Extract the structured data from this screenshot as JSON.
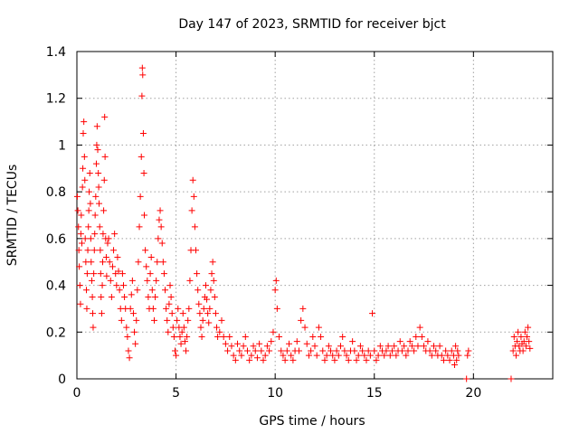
{
  "chart_data": {
    "type": "scatter",
    "title": "Day 147 of 2023, SRMTID for receiver bjct",
    "xlabel": "GPS time / hours",
    "ylabel": "SRMTID / TECUs",
    "xlim": [
      0,
      24
    ],
    "ylim": [
      0,
      1.4
    ],
    "xticks": [
      0,
      5,
      10,
      15,
      20
    ],
    "yticks": [
      0,
      0.2,
      0.4,
      0.6,
      0.8,
      1,
      1.2,
      1.4
    ],
    "xtick_labels": [
      "0",
      "5",
      "10",
      "15",
      "20"
    ],
    "ytick_labels": [
      "0",
      "0.2",
      "0.4",
      "0.6",
      "0.8",
      "1",
      "1.2",
      "1.4"
    ],
    "grid": true,
    "legend": "none",
    "marker": "plus",
    "series_color": "#ff0000",
    "series": [
      {
        "name": "SRMTID",
        "points": [
          [
            0.02,
            0.78
          ],
          [
            0.05,
            0.72
          ],
          [
            0.08,
            0.65
          ],
          [
            0.1,
            0.55
          ],
          [
            0.12,
            0.48
          ],
          [
            0.15,
            0.4
          ],
          [
            0.18,
            0.32
          ],
          [
            0.2,
            0.62
          ],
          [
            0.22,
            0.7
          ],
          [
            0.25,
            0.58
          ],
          [
            0.28,
            0.82
          ],
          [
            0.3,
            0.9
          ],
          [
            0.32,
            1.05
          ],
          [
            0.35,
            1.1
          ],
          [
            0.38,
            0.95
          ],
          [
            0.4,
            0.85
          ],
          [
            0.42,
            0.6
          ],
          [
            0.45,
            0.5
          ],
          [
            0.48,
            0.38
          ],
          [
            0.5,
            0.3
          ],
          [
            0.52,
            0.45
          ],
          [
            0.55,
            0.55
          ],
          [
            0.58,
            0.65
          ],
          [
            0.6,
            0.72
          ],
          [
            0.62,
            0.8
          ],
          [
            0.65,
            0.88
          ],
          [
            0.68,
            0.75
          ],
          [
            0.7,
            0.6
          ],
          [
            0.72,
            0.5
          ],
          [
            0.75,
            0.42
          ],
          [
            0.78,
            0.35
          ],
          [
            0.8,
            0.28
          ],
          [
            0.82,
            0.22
          ],
          [
            0.85,
            0.45
          ],
          [
            0.88,
            0.55
          ],
          [
            0.9,
            0.62
          ],
          [
            0.92,
            0.7
          ],
          [
            0.95,
            0.78
          ],
          [
            0.98,
            0.92
          ],
          [
            1.0,
            1.0
          ],
          [
            1.02,
            1.08
          ],
          [
            1.05,
            0.98
          ],
          [
            1.08,
            0.88
          ],
          [
            1.1,
            0.82
          ],
          [
            1.12,
            0.75
          ],
          [
            1.15,
            0.65
          ],
          [
            1.18,
            0.55
          ],
          [
            1.2,
            0.45
          ],
          [
            1.22,
            0.35
          ],
          [
            1.25,
            0.28
          ],
          [
            1.28,
            0.4
          ],
          [
            1.3,
            0.5
          ],
          [
            1.32,
            0.62
          ],
          [
            1.35,
            0.72
          ],
          [
            1.38,
            0.85
          ],
          [
            1.4,
            1.12
          ],
          [
            1.42,
            0.95
          ],
          [
            1.45,
            0.6
          ],
          [
            1.48,
            0.52
          ],
          [
            1.5,
            0.44
          ],
          [
            1.55,
            0.58
          ],
          [
            1.6,
            0.6
          ],
          [
            1.65,
            0.5
          ],
          [
            1.7,
            0.42
          ],
          [
            1.75,
            0.35
          ],
          [
            1.8,
            0.48
          ],
          [
            1.85,
            0.55
          ],
          [
            1.9,
            0.62
          ],
          [
            1.95,
            0.45
          ],
          [
            2.0,
            0.4
          ],
          [
            2.05,
            0.52
          ],
          [
            2.1,
            0.46
          ],
          [
            2.15,
            0.38
          ],
          [
            2.2,
            0.3
          ],
          [
            2.25,
            0.25
          ],
          [
            2.3,
            0.45
          ],
          [
            2.35,
            0.4
          ],
          [
            2.4,
            0.35
          ],
          [
            2.45,
            0.3
          ],
          [
            2.5,
            0.22
          ],
          [
            2.55,
            0.18
          ],
          [
            2.6,
            0.12
          ],
          [
            2.65,
            0.09
          ],
          [
            2.7,
            0.3
          ],
          [
            2.75,
            0.36
          ],
          [
            2.8,
            0.42
          ],
          [
            2.85,
            0.28
          ],
          [
            2.9,
            0.2
          ],
          [
            2.95,
            0.15
          ],
          [
            3.0,
            0.25
          ],
          [
            3.05,
            0.38
          ],
          [
            3.1,
            0.5
          ],
          [
            3.15,
            0.65
          ],
          [
            3.2,
            0.78
          ],
          [
            3.25,
            0.95
          ],
          [
            3.28,
            1.21
          ],
          [
            3.3,
            1.33
          ],
          [
            3.32,
            1.3
          ],
          [
            3.35,
            1.05
          ],
          [
            3.38,
            0.88
          ],
          [
            3.4,
            0.7
          ],
          [
            3.45,
            0.55
          ],
          [
            3.5,
            0.48
          ],
          [
            3.55,
            0.42
          ],
          [
            3.6,
            0.35
          ],
          [
            3.65,
            0.3
          ],
          [
            3.7,
            0.45
          ],
          [
            3.75,
            0.52
          ],
          [
            3.8,
            0.38
          ],
          [
            3.85,
            0.3
          ],
          [
            3.9,
            0.25
          ],
          [
            3.95,
            0.35
          ],
          [
            4.0,
            0.42
          ],
          [
            4.05,
            0.5
          ],
          [
            4.1,
            0.6
          ],
          [
            4.15,
            0.68
          ],
          [
            4.2,
            0.72
          ],
          [
            4.25,
            0.65
          ],
          [
            4.3,
            0.58
          ],
          [
            4.35,
            0.5
          ],
          [
            4.4,
            0.45
          ],
          [
            4.45,
            0.38
          ],
          [
            4.5,
            0.3
          ],
          [
            4.55,
            0.25
          ],
          [
            4.6,
            0.2
          ],
          [
            4.65,
            0.32
          ],
          [
            4.7,
            0.4
          ],
          [
            4.75,
            0.35
          ],
          [
            4.8,
            0.28
          ],
          [
            4.85,
            0.22
          ],
          [
            4.9,
            0.18
          ],
          [
            4.95,
            0.12
          ],
          [
            5.0,
            0.1
          ],
          [
            5.05,
            0.25
          ],
          [
            5.1,
            0.3
          ],
          [
            5.15,
            0.22
          ],
          [
            5.2,
            0.18
          ],
          [
            5.25,
            0.15
          ],
          [
            5.3,
            0.2
          ],
          [
            5.35,
            0.28
          ],
          [
            5.4,
            0.22
          ],
          [
            5.45,
            0.16
          ],
          [
            5.5,
            0.12
          ],
          [
            5.55,
            0.18
          ],
          [
            5.6,
            0.25
          ],
          [
            5.65,
            0.3
          ],
          [
            5.7,
            0.42
          ],
          [
            5.75,
            0.55
          ],
          [
            5.8,
            0.72
          ],
          [
            5.85,
            0.85
          ],
          [
            5.9,
            0.78
          ],
          [
            5.95,
            0.65
          ],
          [
            6.0,
            0.55
          ],
          [
            6.05,
            0.45
          ],
          [
            6.1,
            0.38
          ],
          [
            6.15,
            0.32
          ],
          [
            6.2,
            0.28
          ],
          [
            6.25,
            0.22
          ],
          [
            6.3,
            0.18
          ],
          [
            6.35,
            0.25
          ],
          [
            6.4,
            0.3
          ],
          [
            6.45,
            0.35
          ],
          [
            6.5,
            0.4
          ],
          [
            6.55,
            0.34
          ],
          [
            6.6,
            0.28
          ],
          [
            6.65,
            0.24
          ],
          [
            6.7,
            0.3
          ],
          [
            6.75,
            0.38
          ],
          [
            6.8,
            0.45
          ],
          [
            6.85,
            0.5
          ],
          [
            6.9,
            0.42
          ],
          [
            6.95,
            0.35
          ],
          [
            7.0,
            0.28
          ],
          [
            7.05,
            0.22
          ],
          [
            7.1,
            0.18
          ],
          [
            7.2,
            0.2
          ],
          [
            7.3,
            0.25
          ],
          [
            7.4,
            0.18
          ],
          [
            7.5,
            0.15
          ],
          [
            7.6,
            0.12
          ],
          [
            7.7,
            0.18
          ],
          [
            7.8,
            0.14
          ],
          [
            7.9,
            0.1
          ],
          [
            8.0,
            0.08
          ],
          [
            8.1,
            0.15
          ],
          [
            8.2,
            0.12
          ],
          [
            8.3,
            0.1
          ],
          [
            8.4,
            0.14
          ],
          [
            8.5,
            0.18
          ],
          [
            8.6,
            0.12
          ],
          [
            8.7,
            0.08
          ],
          [
            8.8,
            0.1
          ],
          [
            8.9,
            0.14
          ],
          [
            9.0,
            0.12
          ],
          [
            9.1,
            0.09
          ],
          [
            9.2,
            0.15
          ],
          [
            9.3,
            0.12
          ],
          [
            9.4,
            0.08
          ],
          [
            9.5,
            0.1
          ],
          [
            9.6,
            0.14
          ],
          [
            9.7,
            0.12
          ],
          [
            9.8,
            0.16
          ],
          [
            9.9,
            0.2
          ],
          [
            10.0,
            0.38
          ],
          [
            10.05,
            0.42
          ],
          [
            10.1,
            0.3
          ],
          [
            10.2,
            0.18
          ],
          [
            10.3,
            0.12
          ],
          [
            10.4,
            0.1
          ],
          [
            10.5,
            0.08
          ],
          [
            10.6,
            0.12
          ],
          [
            10.7,
            0.15
          ],
          [
            10.8,
            0.1
          ],
          [
            10.9,
            0.08
          ],
          [
            11.0,
            0.12
          ],
          [
            11.1,
            0.16
          ],
          [
            11.2,
            0.12
          ],
          [
            11.3,
            0.25
          ],
          [
            11.4,
            0.3
          ],
          [
            11.5,
            0.22
          ],
          [
            11.6,
            0.15
          ],
          [
            11.7,
            0.1
          ],
          [
            11.8,
            0.12
          ],
          [
            11.9,
            0.18
          ],
          [
            12.0,
            0.14
          ],
          [
            12.1,
            0.1
          ],
          [
            12.2,
            0.22
          ],
          [
            12.3,
            0.18
          ],
          [
            12.4,
            0.12
          ],
          [
            12.5,
            0.08
          ],
          [
            12.6,
            0.1
          ],
          [
            12.7,
            0.14
          ],
          [
            12.8,
            0.12
          ],
          [
            12.9,
            0.1
          ],
          [
            13.0,
            0.08
          ],
          [
            13.1,
            0.12
          ],
          [
            13.2,
            0.1
          ],
          [
            13.3,
            0.14
          ],
          [
            13.4,
            0.18
          ],
          [
            13.5,
            0.12
          ],
          [
            13.6,
            0.1
          ],
          [
            13.7,
            0.08
          ],
          [
            13.8,
            0.12
          ],
          [
            13.9,
            0.16
          ],
          [
            14.0,
            0.12
          ],
          [
            14.1,
            0.08
          ],
          [
            14.2,
            0.1
          ],
          [
            14.3,
            0.14
          ],
          [
            14.4,
            0.12
          ],
          [
            14.5,
            0.1
          ],
          [
            14.6,
            0.08
          ],
          [
            14.7,
            0.12
          ],
          [
            14.8,
            0.1
          ],
          [
            14.9,
            0.28
          ],
          [
            15.0,
            0.12
          ],
          [
            15.1,
            0.08
          ],
          [
            15.2,
            0.1
          ],
          [
            15.3,
            0.14
          ],
          [
            15.4,
            0.12
          ],
          [
            15.5,
            0.1
          ],
          [
            15.6,
            0.12
          ],
          [
            15.7,
            0.14
          ],
          [
            15.8,
            0.1
          ],
          [
            15.9,
            0.12
          ],
          [
            16.0,
            0.14
          ],
          [
            16.1,
            0.1
          ],
          [
            16.2,
            0.12
          ],
          [
            16.3,
            0.16
          ],
          [
            16.4,
            0.12
          ],
          [
            16.5,
            0.14
          ],
          [
            16.6,
            0.1
          ],
          [
            16.7,
            0.12
          ],
          [
            16.8,
            0.16
          ],
          [
            16.9,
            0.14
          ],
          [
            17.0,
            0.12
          ],
          [
            17.1,
            0.18
          ],
          [
            17.2,
            0.14
          ],
          [
            17.3,
            0.22
          ],
          [
            17.4,
            0.18
          ],
          [
            17.5,
            0.14
          ],
          [
            17.6,
            0.12
          ],
          [
            17.7,
            0.16
          ],
          [
            17.8,
            0.12
          ],
          [
            17.9,
            0.1
          ],
          [
            18.0,
            0.14
          ],
          [
            18.1,
            0.12
          ],
          [
            18.2,
            0.1
          ],
          [
            18.3,
            0.14
          ],
          [
            18.4,
            0.1
          ],
          [
            18.5,
            0.08
          ],
          [
            18.6,
            0.12
          ],
          [
            18.7,
            0.1
          ],
          [
            18.8,
            0.08
          ],
          [
            18.9,
            0.12
          ],
          [
            19.0,
            0.1
          ],
          [
            19.05,
            0.06
          ],
          [
            19.1,
            0.14
          ],
          [
            19.15,
            0.08
          ],
          [
            19.2,
            0.12
          ],
          [
            19.25,
            0.1
          ],
          [
            19.7,
            0.1
          ],
          [
            19.75,
            0.12
          ],
          [
            19.65,
            0.0
          ],
          [
            21.9,
            0.0
          ],
          [
            22.0,
            0.12
          ],
          [
            22.05,
            0.18
          ],
          [
            22.1,
            0.14
          ],
          [
            22.15,
            0.1
          ],
          [
            22.2,
            0.16
          ],
          [
            22.25,
            0.2
          ],
          [
            22.3,
            0.14
          ],
          [
            22.35,
            0.12
          ],
          [
            22.4,
            0.18
          ],
          [
            22.45,
            0.15
          ],
          [
            22.5,
            0.12
          ],
          [
            22.55,
            0.16
          ],
          [
            22.6,
            0.2
          ],
          [
            22.65,
            0.14
          ],
          [
            22.7,
            0.18
          ],
          [
            22.75,
            0.22
          ],
          [
            22.8,
            0.16
          ],
          [
            22.85,
            0.13
          ]
        ]
      }
    ]
  }
}
